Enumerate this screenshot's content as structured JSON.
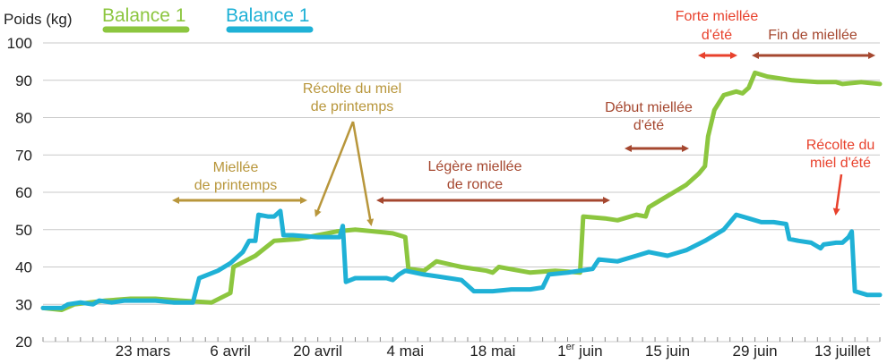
{
  "chart_data": {
    "type": "line",
    "ylabel": "Poids (kg)",
    "ylim": [
      20,
      100
    ],
    "yticks": [
      20,
      30,
      40,
      50,
      60,
      70,
      80,
      90,
      100
    ],
    "xlim": [
      0,
      134
    ],
    "xticks": [
      {
        "x": 16,
        "label": "23 mars",
        "sup": ""
      },
      {
        "x": 30,
        "label": "6 avril",
        "sup": ""
      },
      {
        "x": 44,
        "label": "20 avril",
        "sup": ""
      },
      {
        "x": 58,
        "label": "4 mai",
        "sup": ""
      },
      {
        "x": 72,
        "label": "18 mai",
        "sup": ""
      },
      {
        "x": 86,
        "label": " juin",
        "sup": "1er",
        "pre": "1"
      },
      {
        "x": 100,
        "label": "15 juin",
        "sup": ""
      },
      {
        "x": 114,
        "label": "29 juin",
        "sup": ""
      },
      {
        "x": 128,
        "label": "13 juillet",
        "sup": ""
      }
    ],
    "grid": "horizontal",
    "series": [
      {
        "name": "Balance 1",
        "color": "#8cc63f",
        "points": [
          [
            0,
            29
          ],
          [
            3,
            28.5
          ],
          [
            5,
            30
          ],
          [
            10,
            31
          ],
          [
            14,
            31.5
          ],
          [
            18,
            31.5
          ],
          [
            22,
            31
          ],
          [
            27,
            30.5
          ],
          [
            30,
            33
          ],
          [
            30.5,
            40
          ],
          [
            34,
            43
          ],
          [
            37,
            47
          ],
          [
            41,
            47.5
          ],
          [
            44,
            48.5
          ],
          [
            47,
            49.5
          ],
          [
            50,
            50
          ],
          [
            53,
            49.5
          ],
          [
            56,
            49
          ],
          [
            58,
            48
          ],
          [
            58.5,
            39.5
          ],
          [
            61,
            39
          ],
          [
            63,
            41.5
          ],
          [
            67,
            40
          ],
          [
            71,
            39
          ],
          [
            72,
            38.5
          ],
          [
            73,
            40
          ],
          [
            78,
            38.5
          ],
          [
            82,
            39
          ],
          [
            86,
            38.5
          ],
          [
            86.5,
            53.5
          ],
          [
            90,
            53
          ],
          [
            92,
            52.5
          ],
          [
            95,
            54
          ],
          [
            96.5,
            53.5
          ],
          [
            97,
            56
          ],
          [
            99,
            58
          ],
          [
            101,
            60
          ],
          [
            103,
            62
          ],
          [
            105,
            65
          ],
          [
            106,
            67
          ],
          [
            106.5,
            75
          ],
          [
            107.5,
            82
          ],
          [
            109,
            86
          ],
          [
            111,
            87
          ],
          [
            112,
            86.5
          ],
          [
            113,
            88
          ],
          [
            114,
            92
          ],
          [
            116,
            91
          ],
          [
            118,
            90.5
          ],
          [
            120,
            90
          ],
          [
            124,
            89.5
          ],
          [
            127,
            89.5
          ],
          [
            128,
            89
          ],
          [
            131,
            89.5
          ],
          [
            134,
            89
          ]
        ]
      },
      {
        "name": "Balance 1",
        "color": "#1fb1d6",
        "points": [
          [
            0,
            29
          ],
          [
            3,
            29
          ],
          [
            4,
            30
          ],
          [
            6,
            30.5
          ],
          [
            8,
            30
          ],
          [
            9,
            31
          ],
          [
            11,
            30.5
          ],
          [
            13,
            31
          ],
          [
            16,
            31
          ],
          [
            18,
            31
          ],
          [
            21,
            30.5
          ],
          [
            24,
            30.5
          ],
          [
            25,
            37
          ],
          [
            28,
            39
          ],
          [
            30,
            41
          ],
          [
            32,
            44
          ],
          [
            33,
            47
          ],
          [
            34,
            47
          ],
          [
            34.5,
            54
          ],
          [
            36,
            53.5
          ],
          [
            37,
            53.5
          ],
          [
            38,
            55
          ],
          [
            38.5,
            48.5
          ],
          [
            40,
            48.5
          ],
          [
            44,
            48
          ],
          [
            46,
            48
          ],
          [
            47.5,
            48
          ],
          [
            48,
            51
          ],
          [
            48.5,
            36
          ],
          [
            50,
            37
          ],
          [
            53,
            37
          ],
          [
            55,
            37
          ],
          [
            56,
            36.5
          ],
          [
            57,
            38
          ],
          [
            58,
            39
          ],
          [
            61,
            38
          ],
          [
            63,
            37.5
          ],
          [
            65,
            37
          ],
          [
            67,
            36.5
          ],
          [
            68,
            35
          ],
          [
            69,
            33.5
          ],
          [
            72,
            33.5
          ],
          [
            75,
            34
          ],
          [
            78,
            34
          ],
          [
            80,
            34.5
          ],
          [
            81,
            38
          ],
          [
            84,
            38.5
          ],
          [
            86,
            39
          ],
          [
            88,
            39.5
          ],
          [
            89,
            42
          ],
          [
            92,
            41.5
          ],
          [
            95,
            43
          ],
          [
            97,
            44
          ],
          [
            100,
            43
          ],
          [
            103,
            44.5
          ],
          [
            106,
            47
          ],
          [
            109,
            50
          ],
          [
            111,
            54
          ],
          [
            113,
            53
          ],
          [
            115,
            52
          ],
          [
            117,
            52
          ],
          [
            119,
            51.5
          ],
          [
            119.5,
            47.5
          ],
          [
            121,
            47
          ],
          [
            123,
            46.5
          ],
          [
            124.5,
            45
          ],
          [
            125,
            46
          ],
          [
            127,
            46.5
          ],
          [
            128,
            46.5
          ],
          [
            129,
            48
          ],
          [
            129.5,
            49.5
          ],
          [
            130,
            33.5
          ],
          [
            132,
            32.5
          ],
          [
            134,
            32.5
          ]
        ]
      }
    ],
    "legend": [
      {
        "label": "Balance 1",
        "color": "#8cc63f"
      },
      {
        "label": "Balance 1",
        "color": "#1fb1d6"
      }
    ],
    "annotations": [
      {
        "id": "miellee-printemps",
        "lines": [
          "Miellée",
          "de printemps"
        ],
        "color": "#b8963b",
        "x": 26,
        "y": 57.5,
        "arrow": "double",
        "from": [
          18,
          0
        ],
        "to": [
          40,
          0
        ]
      },
      {
        "id": "recolte-printemps",
        "lines": [
          "Récolte du miel",
          "de printemps"
        ],
        "color": "#b8963b",
        "x": 52,
        "y": 88.5
      },
      {
        "id": "legere-ronce",
        "lines": [
          "Légère miellée",
          "de ronce"
        ],
        "color": "#a5472f",
        "x": 76,
        "y": 62
      },
      {
        "id": "debut-ete",
        "lines": [
          "Début miellée",
          "d'été"
        ],
        "color": "#a5472f",
        "x": 99,
        "y": 74
      },
      {
        "id": "forte-miellee",
        "lines": [
          "Forte miellée",
          "d'été"
        ],
        "color": "#e8412c",
        "x": 113,
        "y": 100
      },
      {
        "id": "fin-miellee",
        "lines": [
          "Fin de miellée"
        ],
        "color": "#a5472f",
        "x": 125,
        "y": 101
      },
      {
        "id": "recolte-ete",
        "lines": [
          "Récolte du",
          "miel d'été"
        ],
        "color": "#e8412c",
        "x": 130,
        "y": 67.5
      }
    ]
  }
}
